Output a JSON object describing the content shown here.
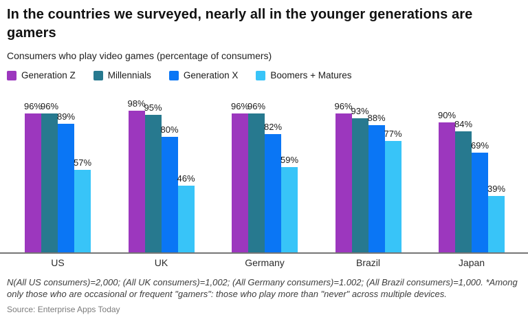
{
  "header": {
    "title_lines": [
      "In the countries we surveyed, nearly all in the younger generations are",
      "gamers"
    ],
    "subtitle": "Consumers who play video games (percentage of consumers)"
  },
  "chart_data": {
    "type": "bar",
    "title": "In the countries we surveyed, nearly all in the younger generations are gamers",
    "subtitle": "Consumers who play video games (percentage of consumers)",
    "categories": [
      "US",
      "UK",
      "Germany",
      "Brazil",
      "Japan"
    ],
    "series": [
      {
        "name": "Generation Z",
        "color": "#9C37BE",
        "values": [
          96,
          98,
          96,
          96,
          90
        ]
      },
      {
        "name": "Millennials",
        "color": "#27798F",
        "values": [
          96,
          95,
          96,
          93,
          84
        ]
      },
      {
        "name": "Generation X",
        "color": "#0A76F5",
        "values": [
          89,
          80,
          82,
          88,
          69
        ]
      },
      {
        "name": "Boomers + Matures",
        "color": "#38C4F8",
        "values": [
          57,
          46,
          59,
          77,
          39
        ]
      }
    ],
    "value_suffix": "%",
    "ylim": [
      0,
      100
    ],
    "grid": false,
    "legend_position": "top",
    "axis_line_color": "#757575"
  },
  "footer": {
    "note": "N(All US consumers)=2,000; (All UK consumers)=1,002; (All Germany consumers)=1.002; (All Brazil consumers)=1,000. *Among only those who are occasional or frequent \"gamers\": those who play more than \"never\" across multiple devices.",
    "source": "Source: Enterprise Apps Today"
  }
}
